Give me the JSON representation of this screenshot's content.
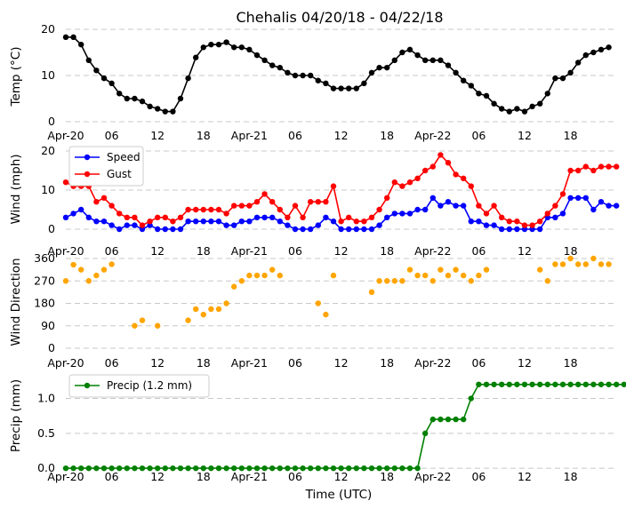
{
  "chart_data": {
    "title": "Chehalis 04/20/18 - 04/22/18",
    "xlabel": "Time (UTC)",
    "grid": "horizontal dashed",
    "x_start_label": "Apr-20",
    "x_ticks": [
      {
        "h": 0,
        "label": "Apr-20"
      },
      {
        "h": 6,
        "label": "06"
      },
      {
        "h": 12,
        "label": "12"
      },
      {
        "h": 18,
        "label": "18"
      },
      {
        "h": 24,
        "label": "Apr-21"
      },
      {
        "h": 30,
        "label": "06"
      },
      {
        "h": 36,
        "label": "12"
      },
      {
        "h": 42,
        "label": "18"
      },
      {
        "h": 48,
        "label": "Apr-22"
      },
      {
        "h": 54,
        "label": "06"
      },
      {
        "h": 60,
        "label": "12"
      },
      {
        "h": 66,
        "label": "18"
      }
    ],
    "panels": [
      {
        "type": "line",
        "ylabel": "Temp (°C)",
        "ylim": [
          0,
          20
        ],
        "yticks": [
          0,
          10,
          20
        ],
        "legend": null,
        "series": [
          {
            "color": "#000000",
            "values": [
              18.3,
              18.3,
              16.7,
              13.3,
              11.1,
              9.4,
              8.3,
              6.1,
              5,
              5,
              4.4,
              3.3,
              2.8,
              2.2,
              2.2,
              5,
              9.4,
              13.9,
              16.1,
              16.7,
              16.7,
              17.2,
              16.1,
              16.1,
              15.6,
              14.4,
              13.3,
              12.2,
              11.7,
              10.6,
              10,
              10,
              10,
              8.9,
              8.3,
              7.2,
              7.2,
              7.2,
              7.2,
              8.3,
              10.6,
              11.7,
              11.7,
              13.3,
              15,
              15.6,
              14.4,
              13.3,
              13.3,
              13.3,
              12.2,
              10.6,
              8.9,
              7.8,
              6.1,
              5.6,
              3.9,
              2.8,
              2.2,
              2.8,
              2.2,
              3.3,
              3.9,
              6.1,
              9.4,
              9.4,
              10.6,
              12.8,
              14.4,
              15,
              15.6,
              16.1
            ]
          }
        ]
      },
      {
        "type": "line",
        "ylabel": "Wind (mph)",
        "ylim": [
          0,
          20
        ],
        "yticks": [
          0,
          10,
          20
        ],
        "legend": "top-left",
        "series": [
          {
            "name": "Speed",
            "color": "#0000ff",
            "values": [
              3,
              4,
              5,
              3,
              2,
              2,
              1,
              0,
              1,
              1,
              0,
              1,
              0,
              0,
              0,
              0,
              2,
              2,
              2,
              2,
              2,
              1,
              1,
              2,
              2,
              3,
              3,
              3,
              2,
              1,
              0,
              0,
              0,
              1,
              3,
              2,
              0,
              0,
              0,
              0,
              0,
              1,
              3,
              4,
              4,
              4,
              5,
              5,
              8,
              6,
              7,
              6,
              6,
              2,
              2,
              1,
              1,
              0,
              0,
              0,
              0,
              0,
              0,
              3,
              3,
              4,
              8,
              8,
              8,
              5,
              7,
              6,
              6
            ]
          },
          {
            "name": "Gust",
            "color": "#ff0000",
            "values": [
              12,
              11,
              11,
              11,
              7,
              8,
              6,
              4,
              3,
              3,
              1,
              2,
              3,
              3,
              2,
              3,
              5,
              5,
              5,
              5,
              5,
              4,
              6,
              6,
              6,
              7,
              9,
              7,
              5,
              3,
              6,
              3,
              7,
              7,
              7,
              11,
              2,
              3,
              2,
              2,
              3,
              5,
              8,
              12,
              11,
              12,
              13,
              15,
              16,
              19,
              17,
              14,
              13,
              11,
              6,
              4,
              6,
              3,
              2,
              2,
              1,
              1,
              2,
              4,
              6,
              9,
              15,
              15,
              16,
              15,
              16,
              16,
              16
            ]
          }
        ]
      },
      {
        "type": "scatter",
        "ylabel": "Wind Direction",
        "ylim": [
          0,
          360
        ],
        "yticks": [
          0,
          90,
          180,
          270,
          360
        ],
        "legend": null,
        "series": [
          {
            "color": "#ffa500",
            "values": [
              270,
              335,
              315,
              270,
              292,
              315,
              337,
              null,
              null,
              90,
              112,
              null,
              90,
              null,
              null,
              null,
              112,
              157,
              135,
              157,
              157,
              180,
              247,
              270,
              292,
              292,
              292,
              315,
              292,
              null,
              null,
              null,
              null,
              180,
              135,
              292,
              null,
              null,
              null,
              null,
              225,
              270,
              270,
              270,
              270,
              315,
              292,
              292,
              270,
              315,
              292,
              315,
              292,
              270,
              292,
              315,
              null,
              null,
              null,
              null,
              null,
              null,
              315,
              270,
              337,
              337,
              360,
              337,
              337,
              360,
              337,
              337
            ]
          }
        ]
      },
      {
        "type": "line",
        "ylabel": "Precip (mm)",
        "ylim": [
          -0.1,
          1.35
        ],
        "yticks": [
          0.0,
          0.5,
          1.0
        ],
        "ytick_labels": [
          "0.0",
          "0.5",
          "1.0"
        ],
        "legend": "top-left",
        "series": [
          {
            "name": "Precip (1.2 mm)",
            "color": "#008000",
            "values": [
              0,
              0,
              0,
              0,
              0,
              0,
              0,
              0,
              0,
              0,
              0,
              0,
              0,
              0,
              0,
              0,
              0,
              0,
              0,
              0,
              0,
              0,
              0,
              0,
              0,
              0,
              0,
              0,
              0,
              0,
              0,
              0,
              0,
              0,
              0,
              0,
              0,
              0,
              0,
              0,
              0,
              0,
              0,
              0,
              0,
              0,
              0,
              0.5,
              0.7,
              0.7,
              0.7,
              0.7,
              0.7,
              1.0,
              1.2,
              1.2,
              1.2,
              1.2,
              1.2,
              1.2,
              1.2,
              1.2,
              1.2,
              1.2,
              1.2,
              1.2,
              1.2,
              1.2,
              1.2,
              1.2,
              1.2,
              1.2,
              1.2,
              1.2,
              1.2,
              1.2,
              1.2,
              1.2,
              1.2,
              1.2,
              1.2,
              1.2,
              1.2
            ]
          }
        ]
      }
    ]
  }
}
